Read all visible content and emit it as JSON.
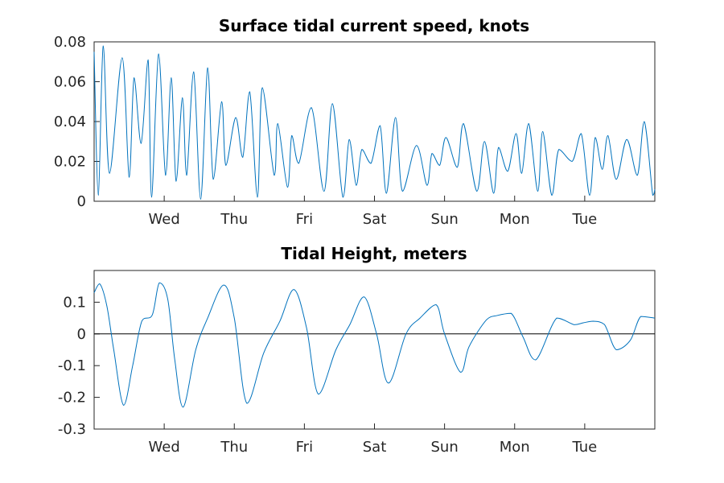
{
  "chart_data": [
    {
      "type": "line",
      "title": "Surface tidal current speed, knots",
      "xlabel": "",
      "ylabel": "",
      "xlim": [
        0,
        8
      ],
      "ylim": [
        0,
        0.08
      ],
      "x_ticks": [
        {
          "value": 1,
          "label": "Wed"
        },
        {
          "value": 2,
          "label": "Thu"
        },
        {
          "value": 3,
          "label": "Fri"
        },
        {
          "value": 4,
          "label": "Sat"
        },
        {
          "value": 5,
          "label": "Sun"
        },
        {
          "value": 6,
          "label": "Mon"
        },
        {
          "value": 7,
          "label": "Tue"
        }
      ],
      "y_ticks": [
        {
          "value": 0,
          "label": "0"
        },
        {
          "value": 0.02,
          "label": "0.02"
        },
        {
          "value": 0.04,
          "label": "0.04"
        },
        {
          "value": 0.06,
          "label": "0.06"
        },
        {
          "value": 0.08,
          "label": "0.08"
        }
      ],
      "grid": false,
      "color": "#0072bd",
      "series": [
        {
          "x": [
            0,
            0.06,
            0.13,
            0.22,
            0.4,
            0.5,
            0.57,
            0.67,
            0.77,
            0.82,
            0.92,
            1.02,
            1.1,
            1.17,
            1.26,
            1.32,
            1.42,
            1.52,
            1.62,
            1.7,
            1.82,
            1.88,
            2.02,
            2.12,
            2.22,
            2.33,
            2.4,
            2.57,
            2.62,
            2.76,
            2.82,
            2.92,
            3.1,
            3.28,
            3.4,
            3.55,
            3.64,
            3.74,
            3.82,
            3.95,
            4.08,
            4.17,
            4.3,
            4.4,
            4.6,
            4.75,
            4.82,
            4.93,
            5.02,
            5.18,
            5.27,
            5.46,
            5.57,
            5.7,
            5.77,
            5.9,
            6.02,
            6.1,
            6.2,
            6.33,
            6.4,
            6.53,
            6.63,
            6.82,
            6.95,
            7.07,
            7.15,
            7.25,
            7.33,
            7.45,
            7.6,
            7.75,
            7.85,
            7.97,
            8.0
          ],
          "y": [
            0.075,
            0.003,
            0.078,
            0.014,
            0.072,
            0.012,
            0.062,
            0.029,
            0.071,
            0.002,
            0.074,
            0.013,
            0.062,
            0.01,
            0.052,
            0.013,
            0.065,
            0.001,
            0.067,
            0.011,
            0.05,
            0.018,
            0.042,
            0.022,
            0.055,
            0.002,
            0.057,
            0.013,
            0.039,
            0.007,
            0.033,
            0.019,
            0.047,
            0.005,
            0.049,
            0.002,
            0.031,
            0.008,
            0.026,
            0.019,
            0.038,
            0.004,
            0.042,
            0.005,
            0.028,
            0.008,
            0.024,
            0.018,
            0.032,
            0.017,
            0.039,
            0.005,
            0.03,
            0.004,
            0.027,
            0.015,
            0.034,
            0.014,
            0.039,
            0.005,
            0.035,
            0.003,
            0.026,
            0.02,
            0.034,
            0.003,
            0.032,
            0.016,
            0.033,
            0.011,
            0.031,
            0.013,
            0.04,
            0.003,
            0.006
          ]
        }
      ]
    },
    {
      "type": "line",
      "title": "Tidal Height, meters",
      "xlabel": "",
      "ylabel": "",
      "xlim": [
        0,
        8
      ],
      "ylim": [
        -0.3,
        0.2
      ],
      "x_ticks": [
        {
          "value": 1,
          "label": "Wed"
        },
        {
          "value": 2,
          "label": "Thu"
        },
        {
          "value": 3,
          "label": "Fri"
        },
        {
          "value": 4,
          "label": "Sat"
        },
        {
          "value": 5,
          "label": "Sun"
        },
        {
          "value": 6,
          "label": "Mon"
        },
        {
          "value": 7,
          "label": "Tue"
        }
      ],
      "y_ticks": [
        {
          "value": -0.3,
          "label": "-0.3"
        },
        {
          "value": -0.2,
          "label": "-0.2"
        },
        {
          "value": -0.1,
          "label": "-0.1"
        },
        {
          "value": 0,
          "label": "0"
        },
        {
          "value": 0.1,
          "label": "0.1"
        }
      ],
      "zero_line": true,
      "grid": false,
      "color": "#0072bd",
      "series": [
        {
          "x": [
            0,
            0.08,
            0.18,
            0.28,
            0.42,
            0.55,
            0.68,
            0.83,
            0.93,
            1.05,
            1.15,
            1.27,
            1.45,
            1.62,
            1.85,
            2.0,
            2.18,
            2.42,
            2.65,
            2.85,
            3.03,
            3.2,
            3.45,
            3.65,
            3.85,
            4.03,
            4.2,
            4.45,
            4.65,
            4.88,
            5.0,
            5.23,
            5.35,
            5.6,
            5.75,
            5.95,
            6.12,
            6.3,
            6.6,
            6.85,
            6.98,
            7.12,
            7.28,
            7.45,
            7.65,
            7.8,
            8.0
          ],
          "y": [
            0.13,
            0.158,
            0.09,
            -0.05,
            -0.225,
            -0.1,
            0.04,
            0.06,
            0.161,
            0.11,
            -0.08,
            -0.231,
            -0.05,
            0.05,
            0.154,
            0.05,
            -0.219,
            -0.06,
            0.04,
            0.14,
            0.02,
            -0.19,
            -0.05,
            0.03,
            0.117,
            0.0,
            -0.155,
            0.0,
            0.05,
            0.092,
            0.0,
            -0.121,
            -0.04,
            0.045,
            0.058,
            0.065,
            -0.01,
            -0.082,
            0.05,
            0.029,
            0.035,
            0.04,
            0.03,
            -0.05,
            -0.02,
            0.055,
            0.05
          ]
        }
      ]
    }
  ]
}
